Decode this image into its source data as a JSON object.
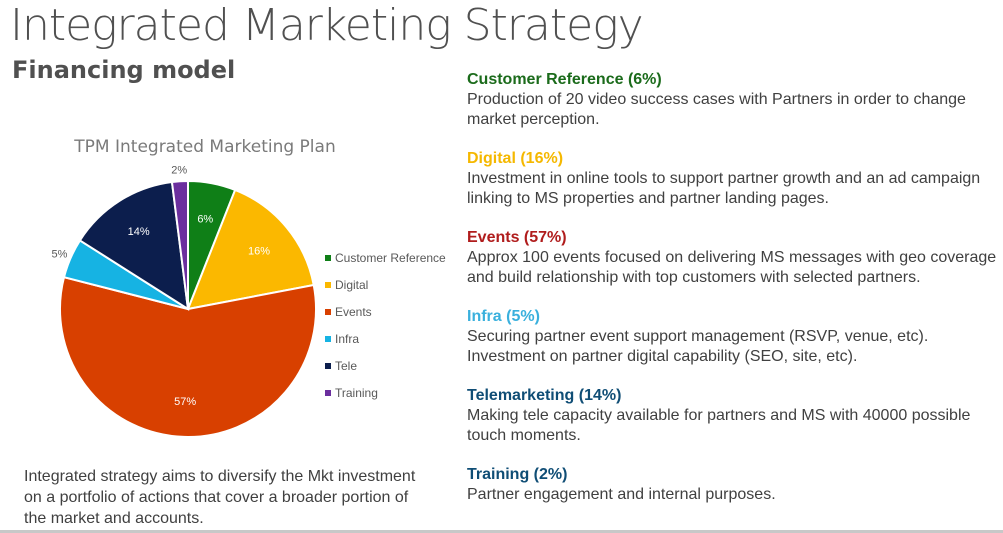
{
  "slide": {
    "title": "Integrated Marketing Strategy",
    "subtitle": "Financing model",
    "intro": "Integrated strategy aims to diversify the Mkt investment on a portfolio of actions that cover a broader portion of the market and accounts."
  },
  "chart_data": {
    "type": "pie",
    "title": "TPM Integrated Marketing Plan",
    "categories": [
      "Customer Reference",
      "Digital",
      "Events",
      "Infra",
      "Tele",
      "Training"
    ],
    "values": [
      6,
      16,
      57,
      5,
      14,
      2
    ],
    "labels": [
      "6%",
      "16%",
      "57%",
      "5%",
      "14%",
      "2%"
    ],
    "colors": [
      "#0f7f17",
      "#fbb800",
      "#d84000",
      "#16b3e3",
      "#0c1e4d",
      "#6b2f9e"
    ],
    "legend_position": "right"
  },
  "sections": [
    {
      "title": "Customer Reference (6%)",
      "color": "#1b6b1b",
      "body": "Production of 20 video success cases with Partners in order to change market perception."
    },
    {
      "title": "Digital (16%)",
      "color": "#f5b800",
      "body": "Investment in online tools to support partner growth and an ad campaign linking to MS properties and partner landing pages."
    },
    {
      "title": "Events (57%)",
      "color": "#b01c1c",
      "body": "Approx 100 events focused on delivering MS messages with geo coverage and build relationship with top customers with selected partners."
    },
    {
      "title": "Infra (5%)",
      "color": "#3ab0dd",
      "body": "Securing partner event support management (RSVP, venue, etc). Investment on partner digital capability (SEO, site, etc)."
    },
    {
      "title": "Telemarketing (14%)",
      "color": "#0f4d75",
      "body": "Making tele capacity available for partners and MS with 40000 possible touch moments."
    },
    {
      "title": "Training (2%)",
      "color": "#0f4d75",
      "body": "Partner engagement and internal purposes."
    }
  ]
}
